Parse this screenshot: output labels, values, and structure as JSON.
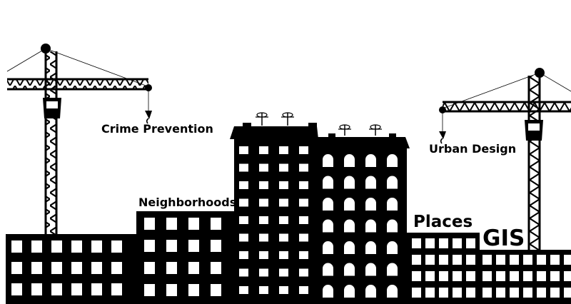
{
  "title": "City skyline illustration with construction cranes",
  "labels": {
    "crime_prevention": "Crime Prevention",
    "urban_design": "Urban Design",
    "neighborhoods": "Neighborhoods",
    "places": "Places",
    "gis": "GIS"
  },
  "colors": {
    "background": "#ffffff",
    "ink": "#000000",
    "window": "#ffffff"
  },
  "icons": [
    "crane-icon",
    "antenna-icon",
    "building-icon"
  ]
}
